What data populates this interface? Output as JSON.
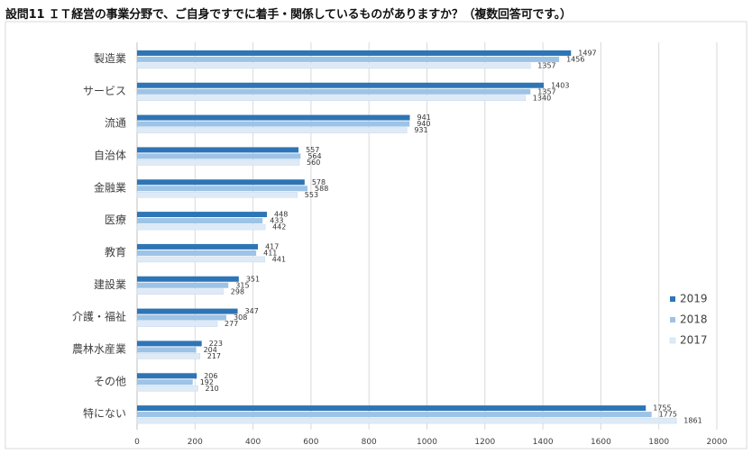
{
  "title": "設問11 ＩＴ経営の事業分野で、ご自身ですでに着手・関係しているものがありますか？（複数回答可です。）",
  "colors": {
    "2019": "#2e75b6",
    "2018": "#9dc3e6",
    "2017": "#deebf7"
  },
  "chart_data": {
    "type": "bar",
    "orientation": "horizontal",
    "title": "設問11 ＩＴ経営の事業分野で、ご自身ですでに着手・関係しているものがありますか？（複数回答可です。）",
    "categories": [
      "製造業",
      "サービス",
      "流通",
      "自治体",
      "金融業",
      "医療",
      "教育",
      "建設業",
      "介護・福祉",
      "農林水産業",
      "その他",
      "特にない"
    ],
    "series": [
      {
        "name": "2019",
        "values": [
          1497,
          1403,
          941,
          557,
          578,
          448,
          417,
          351,
          347,
          223,
          206,
          1755
        ]
      },
      {
        "name": "2018",
        "values": [
          1456,
          1357,
          940,
          564,
          588,
          433,
          411,
          315,
          308,
          204,
          192,
          1775
        ]
      },
      {
        "name": "2017",
        "values": [
          1357,
          1340,
          931,
          560,
          553,
          442,
          441,
          298,
          277,
          217,
          210,
          1861
        ]
      }
    ],
    "xlim": [
      0,
      2000
    ],
    "xticks": [
      "0",
      "200",
      "400",
      "600",
      "800",
      "1000",
      "1200",
      "1400",
      "1600",
      "1800",
      "2000"
    ],
    "grid": true,
    "legend": "right"
  }
}
